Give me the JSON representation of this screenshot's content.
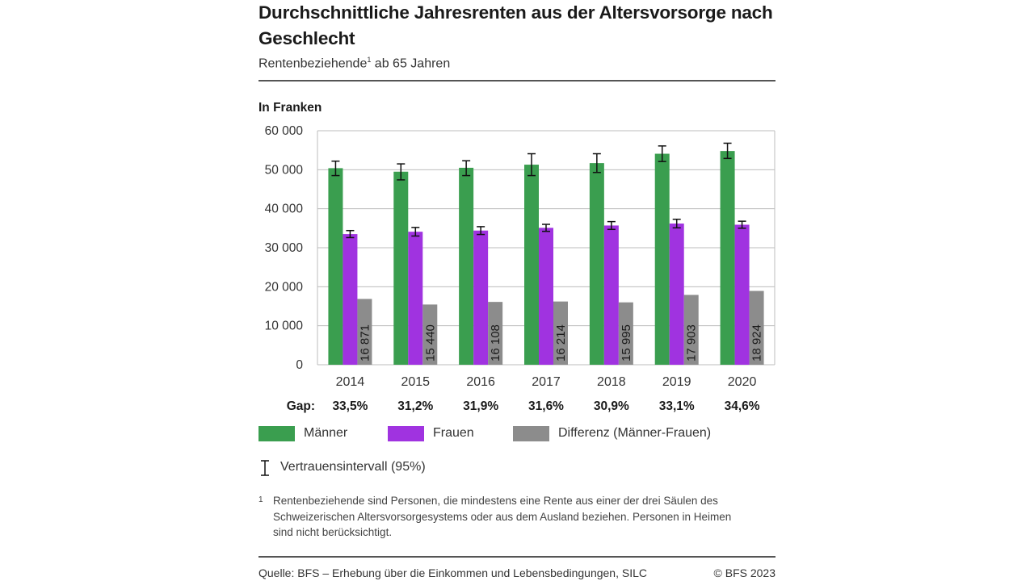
{
  "header": {
    "title": "Durchschnittliche Jahresrenten aus der Altersvorsorge nach Geschlecht",
    "subtitle": "Rentenbeziehende",
    "subtitle_sup": "1",
    "subtitle_rest": " ab 65 Jahren"
  },
  "chart_data": {
    "type": "bar",
    "title": "Durchschnittliche Jahresrenten aus der Altersvorsorge nach Geschlecht",
    "ylabel": "In Franken",
    "ylim": [
      0,
      60000
    ],
    "yticks": [
      0,
      10000,
      20000,
      30000,
      40000,
      50000,
      60000
    ],
    "ytick_labels": [
      "0",
      "10 000",
      "20 000",
      "30 000",
      "40 000",
      "50 000",
      "60 000"
    ],
    "categories": [
      "2014",
      "2015",
      "2016",
      "2017",
      "2018",
      "2019",
      "2020"
    ],
    "series": [
      {
        "name": "Männer",
        "color": "#3a9e4f",
        "values": [
          50400,
          49500,
          50500,
          51300,
          51700,
          54100,
          54800
        ],
        "ci_low": [
          48500,
          47400,
          48500,
          48500,
          49300,
          52100,
          52900
        ],
        "ci_high": [
          52200,
          51500,
          52300,
          54100,
          54100,
          56100,
          56800
        ]
      },
      {
        "name": "Frauen",
        "color": "#a033e0",
        "values": [
          33500,
          34100,
          34400,
          35100,
          35700,
          36200,
          35900
        ],
        "ci_low": [
          32600,
          33000,
          33400,
          34200,
          34700,
          35100,
          35000
        ],
        "ci_high": [
          34400,
          35200,
          35400,
          36000,
          36700,
          37300,
          36800
        ]
      },
      {
        "name": "Differenz (Männer-Frauen)",
        "color": "#8c8c8c",
        "values": [
          16871,
          15440,
          16108,
          16214,
          15995,
          17903,
          18924
        ],
        "labels": [
          "16 871",
          "15 440",
          "16 108",
          "16 214",
          "15 995",
          "17 903",
          "18 924"
        ]
      }
    ],
    "gap_label": "Gap:",
    "gaps": [
      "33,5%",
      "31,2%",
      "31,9%",
      "31,6%",
      "30,9%",
      "33,1%",
      "34,6%"
    ],
    "grid": true,
    "legend_position": "bottom"
  },
  "legend": {
    "items": [
      {
        "label": "Männer",
        "color": "#3a9e4f"
      },
      {
        "label": "Frauen",
        "color": "#a033e0"
      },
      {
        "label": "Differenz (Männer-Frauen)",
        "color": "#8c8c8c"
      }
    ],
    "ci_label": "Vertrauensintervall (95%)"
  },
  "footnote": {
    "number": "1",
    "text": "Rentenbeziehende sind Personen, die mindestens eine Rente aus einer der drei Säulen des Schweizerischen Altersvorsorgesystems oder aus dem Ausland beziehen. Personen in Heimen sind nicht berücksichtigt."
  },
  "footer": {
    "source": "Quelle: BFS – Erhebung über die Einkommen und Lebensbedingungen, SILC",
    "copyright": "© BFS 2023"
  }
}
